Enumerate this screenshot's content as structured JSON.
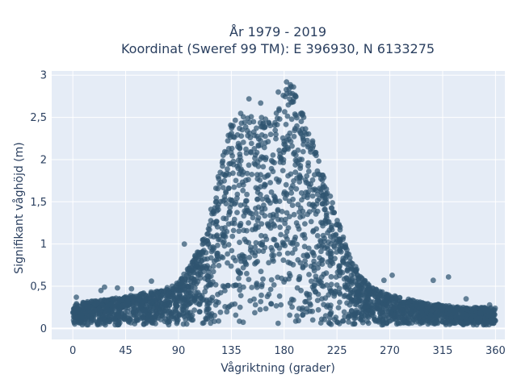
{
  "chart_data": {
    "type": "scatter",
    "title_line1": "År 1979 - 2019",
    "title_line2": "Koordinat (Sweref 99 TM): E 396930, N 6133275",
    "xlabel": "Vågriktning (grader)",
    "ylabel": "Signifikant våghöjd (m)",
    "xlim": [
      -18,
      368
    ],
    "ylim": [
      -0.13,
      3.05
    ],
    "x_ticks": [
      0,
      45,
      90,
      135,
      180,
      225,
      270,
      315,
      360
    ],
    "x_tick_labels": [
      "0",
      "45",
      "90",
      "135",
      "180",
      "225",
      "270",
      "315",
      "360"
    ],
    "y_ticks": [
      0,
      0.5,
      1,
      1.5,
      2,
      2.5,
      3
    ],
    "y_tick_labels": [
      "0",
      "0,5",
      "1",
      "1,5",
      "2",
      "2,5",
      "3"
    ],
    "grid": true,
    "marker_color": "#2f5570",
    "plot_bg": "#e5ecf6",
    "series": [
      {
        "envelope": {
          "x": [
            0,
            15,
            30,
            45,
            60,
            75,
            90,
            100,
            110,
            120,
            130,
            135,
            140,
            150,
            160,
            170,
            180,
            185,
            190,
            200,
            210,
            220,
            230,
            240,
            250,
            260,
            270,
            285,
            300,
            315,
            330,
            345,
            360
          ],
          "y_max": [
            0.3,
            0.32,
            0.35,
            0.38,
            0.42,
            0.45,
            0.55,
            0.75,
            1.05,
            1.55,
            2.2,
            2.5,
            2.55,
            2.55,
            2.5,
            2.55,
            2.8,
            2.9,
            2.75,
            2.4,
            2.0,
            1.55,
            1.1,
            0.75,
            0.55,
            0.45,
            0.4,
            0.35,
            0.3,
            0.28,
            0.25,
            0.25,
            0.25
          ]
        },
        "outliers": [
          {
            "x": 3,
            "y": 0.37
          },
          {
            "x": 24,
            "y": 0.45
          },
          {
            "x": 27,
            "y": 0.49
          },
          {
            "x": 38,
            "y": 0.48
          },
          {
            "x": 50,
            "y": 0.47
          },
          {
            "x": 67,
            "y": 0.56
          },
          {
            "x": 95,
            "y": 1.0
          },
          {
            "x": 150,
            "y": 2.72
          },
          {
            "x": 160,
            "y": 2.67
          },
          {
            "x": 175,
            "y": 2.8
          },
          {
            "x": 182,
            "y": 2.92
          },
          {
            "x": 188,
            "y": 2.86
          },
          {
            "x": 265,
            "y": 0.57
          },
          {
            "x": 272,
            "y": 0.63
          },
          {
            "x": 307,
            "y": 0.57
          },
          {
            "x": 320,
            "y": 0.61
          },
          {
            "x": 335,
            "y": 0.35
          },
          {
            "x": 355,
            "y": 0.28
          }
        ]
      }
    ]
  }
}
